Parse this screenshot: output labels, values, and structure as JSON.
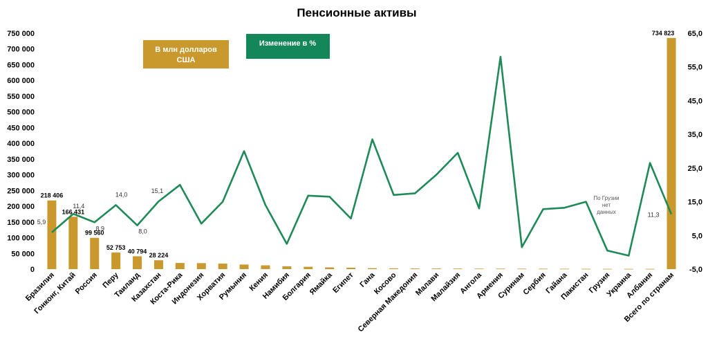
{
  "chart_data": {
    "type": "bar+line",
    "title": "Пенсионные активы",
    "categories": [
      "Бразилия",
      "Гонконг, Китай",
      "Россия",
      "Перу",
      "Таиланд",
      "Казахстан",
      "Коста-Рика",
      "Индонезия",
      "Хорватия",
      "Румыния",
      "Кения",
      "Намибия",
      "Болгария",
      "Ямайка",
      "Египет",
      "Гана",
      "Косово",
      "Северная Македония",
      "Малави",
      "Малайзия",
      "Ангола",
      "Армения",
      "Суринам",
      "Сербия",
      "Гайана",
      "Пакистан",
      "Грузия",
      "Украина",
      "Албания",
      "Всего по странам"
    ],
    "series": [
      {
        "name": "В млн долларов США",
        "type": "bar",
        "axis": "left",
        "color": "#c9992e",
        "values": [
          218406,
          166431,
          99560,
          52753,
          40794,
          28224,
          19500,
          19000,
          17500,
          14500,
          12000,
          9000,
          7500,
          5500,
          4500,
          3000,
          2500,
          2000,
          2000,
          1800,
          1600,
          1500,
          1400,
          1300,
          1100,
          1000,
          900,
          800,
          800,
          734823
        ],
        "labels": [
          "218 406",
          "166 431",
          "99 560",
          "52 753",
          "40 794",
          "28 224",
          "",
          "",
          "",
          "",
          "",
          "",
          "",
          "",
          "",
          "",
          "",
          "",
          "",
          "",
          "",
          "",
          "",
          "",
          "",
          "",
          "",
          "",
          "",
          "734 823"
        ]
      },
      {
        "name": "Изменение в %",
        "type": "line",
        "axis": "right",
        "color": "#1e8a57",
        "values": [
          5.9,
          11.4,
          8.9,
          14.0,
          8.0,
          15.1,
          20.0,
          8.5,
          15.0,
          30.0,
          14.0,
          2.5,
          16.8,
          16.5,
          10.0,
          33.5,
          17.0,
          17.5,
          23.0,
          29.5,
          13.0,
          58.0,
          1.5,
          12.8,
          13.2,
          15.0,
          0.5,
          -1.0,
          26.5,
          11.3
        ],
        "labels": [
          "5,9",
          "11,4",
          "8,9",
          "14,0",
          "8,0",
          "15,1",
          "",
          "",
          "",
          "",
          "",
          "",
          "",
          "",
          "",
          "",
          "",
          "",
          "",
          "",
          "",
          "",
          "",
          "",
          "",
          "",
          "",
          "",
          "",
          "11,3"
        ]
      }
    ],
    "ylim_left": [
      0,
      750000
    ],
    "yticks_left": [
      "0",
      "50 000",
      "100 000",
      "150 000",
      "200 000",
      "250 000",
      "300 000",
      "350 000",
      "400 000",
      "450 000",
      "500 000",
      "550 000",
      "600 000",
      "650 000",
      "700 000",
      "750 000"
    ],
    "ylim_right": [
      -5,
      65
    ],
    "yticks_right": [
      "-5,0",
      "5,0",
      "15,0",
      "25,0",
      "35,0",
      "45,0",
      "55,0",
      "65,0"
    ],
    "note": [
      "По Грузии",
      "нет",
      "данных"
    ],
    "grid": false,
    "legend": {
      "bar_label": [
        "В млн долларов",
        "США"
      ],
      "line_label": "Изменение в %",
      "bar_color": "#c9992e",
      "line_color": "#13875a"
    }
  }
}
